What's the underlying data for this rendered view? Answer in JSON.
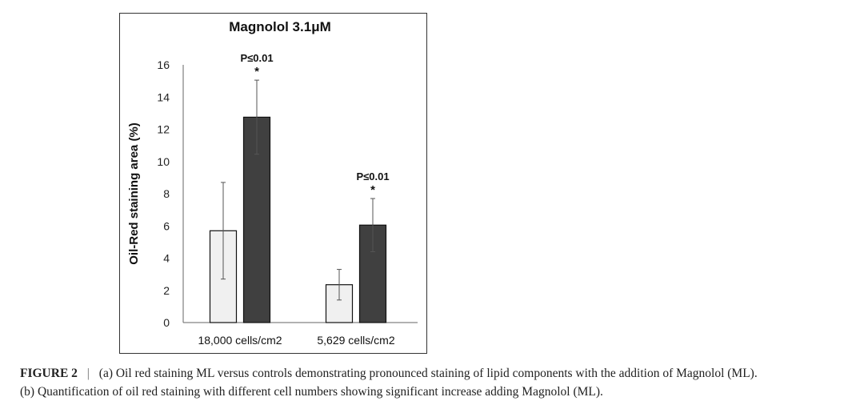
{
  "chart_data": {
    "type": "bar",
    "title": "Magnolol 3.1μM",
    "ylabel": "Oil-Red staining area (%)",
    "xlabel": "",
    "ylim": [
      0,
      16
    ],
    "yticks": [
      0,
      2,
      4,
      6,
      8,
      10,
      12,
      14,
      16
    ],
    "categories": [
      "18,000 cells/cm2",
      "5,629 cells/cm2"
    ],
    "series": [
      {
        "values": [
          5.7,
          2.35
        ],
        "errors": [
          3.0,
          0.95
        ],
        "color": "#f0f0f0"
      },
      {
        "values": [
          12.75,
          6.05
        ],
        "errors": [
          2.3,
          1.65
        ],
        "color": "#404040"
      }
    ],
    "annotations": [
      {
        "category": 0,
        "series": 1,
        "pvalue": "P≤0.01",
        "marker": "*"
      },
      {
        "category": 1,
        "series": 1,
        "pvalue": "P≤0.01",
        "marker": "*"
      }
    ],
    "grid": false
  },
  "caption": {
    "label": "FIGURE 2",
    "separator": "|",
    "line1": "(a) Oil red staining ML versus controls demonstrating pronounced staining of lipid components with the addition of Magnolol (ML).",
    "line2": "(b) Quantification of oil red staining with different cell numbers showing significant increase adding Magnolol (ML)."
  }
}
